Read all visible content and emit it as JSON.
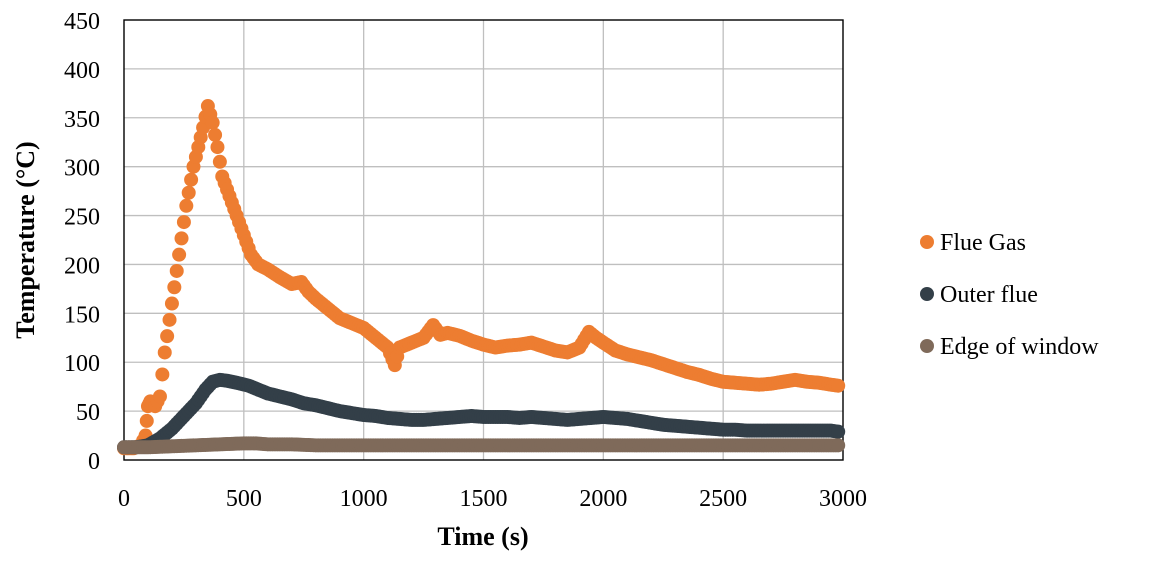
{
  "chart_data": {
    "type": "scatter",
    "xlabel": "Time (s)",
    "ylabel": "Temperature (°C)",
    "xlim": [
      0,
      3000
    ],
    "ylim": [
      0,
      450
    ],
    "xticks": [
      0,
      500,
      1000,
      1500,
      2000,
      2500,
      3000
    ],
    "yticks": [
      0,
      50,
      100,
      150,
      200,
      250,
      300,
      350,
      400,
      450
    ],
    "grid": true,
    "legend_position": "right",
    "series": [
      {
        "name": "Flue Gas",
        "color": "#ED7D31",
        "x": [
          0,
          40,
          70,
          90,
          100,
          110,
          130,
          150,
          170,
          200,
          230,
          260,
          290,
          310,
          330,
          350,
          370,
          390,
          410,
          440,
          470,
          500,
          530,
          560,
          600,
          650,
          700,
          740,
          770,
          800,
          850,
          900,
          950,
          1000,
          1050,
          1100,
          1130,
          1150,
          1200,
          1250,
          1290,
          1320,
          1350,
          1400,
          1450,
          1500,
          1550,
          1600,
          1650,
          1700,
          1750,
          1800,
          1850,
          1900,
          1940,
          1970,
          2000,
          2050,
          2100,
          2150,
          2200,
          2250,
          2300,
          2350,
          2400,
          2450,
          2500,
          2550,
          2600,
          2650,
          2700,
          2750,
          2800,
          2850,
          2900,
          2950,
          2980
        ],
        "y": [
          12,
          12,
          15,
          25,
          55,
          60,
          55,
          65,
          110,
          160,
          210,
          260,
          300,
          320,
          340,
          362,
          345,
          320,
          290,
          270,
          250,
          230,
          210,
          200,
          195,
          187,
          180,
          182,
          172,
          165,
          155,
          145,
          140,
          135,
          125,
          115,
          97,
          115,
          120,
          125,
          138,
          128,
          130,
          127,
          122,
          118,
          115,
          117,
          118,
          120,
          116,
          112,
          110,
          115,
          131,
          125,
          120,
          112,
          108,
          105,
          102,
          98,
          94,
          90,
          87,
          83,
          80,
          79,
          78,
          77,
          78,
          80,
          82,
          80,
          79,
          77,
          76
        ]
      },
      {
        "name": "Outer flue",
        "color": "#333F48",
        "x": [
          0,
          50,
          100,
          150,
          200,
          250,
          300,
          340,
          370,
          400,
          430,
          470,
          520,
          560,
          600,
          650,
          700,
          750,
          800,
          850,
          900,
          950,
          1000,
          1050,
          1100,
          1150,
          1200,
          1250,
          1300,
          1350,
          1400,
          1450,
          1500,
          1550,
          1600,
          1650,
          1700,
          1750,
          1800,
          1850,
          1900,
          1950,
          2000,
          2050,
          2100,
          2150,
          2200,
          2250,
          2300,
          2350,
          2400,
          2450,
          2500,
          2550,
          2600,
          2650,
          2700,
          2750,
          2800,
          2850,
          2900,
          2950,
          2980
        ],
        "y": [
          13,
          13,
          15,
          22,
          32,
          45,
          58,
          72,
          80,
          82,
          81,
          79,
          76,
          72,
          68,
          65,
          62,
          58,
          56,
          53,
          50,
          48,
          46,
          45,
          43,
          42,
          41,
          41,
          42,
          43,
          44,
          45,
          44,
          44,
          44,
          43,
          44,
          43,
          42,
          41,
          42,
          43,
          44,
          43,
          42,
          40,
          38,
          36,
          35,
          34,
          33,
          32,
          31,
          31,
          30,
          30,
          30,
          30,
          30,
          30,
          30,
          30,
          29
        ]
      },
      {
        "name": "Edge of window",
        "color": "#7F6A5A",
        "x": [
          0,
          100,
          200,
          300,
          400,
          500,
          550,
          600,
          700,
          800,
          900,
          1000,
          1200,
          1400,
          1600,
          1800,
          2000,
          2200,
          2400,
          2600,
          2800,
          2980
        ],
        "y": [
          13,
          13,
          14,
          15,
          16,
          17,
          17,
          16,
          16,
          15,
          15,
          15,
          15,
          15,
          15,
          15,
          15,
          15,
          15,
          15,
          15,
          15
        ]
      }
    ]
  }
}
